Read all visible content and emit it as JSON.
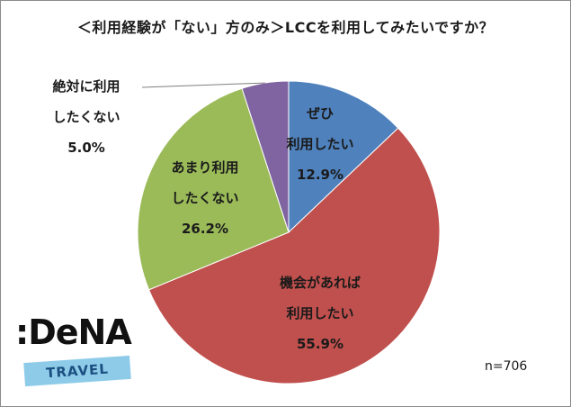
{
  "title": "＜利用経験が「ない」方のみ＞LCCを利用してみたいですか？",
  "sample_size": "n=706",
  "logo": {
    "wordmark": "DeNA",
    "sub": "TRAVEL"
  },
  "chart_data": {
    "type": "pie",
    "title": "＜利用経験が「ない」方のみ＞LCCを利用してみたいですか？",
    "slices": [
      {
        "label_lines": [
          "ぜひ",
          "利用したい"
        ],
        "value": 12.9,
        "value_label": "12.9%",
        "color": "#4f81bd"
      },
      {
        "label_lines": [
          "機会があれば",
          "利用したい"
        ],
        "value": 55.9,
        "value_label": "55.9%",
        "color": "#c0504d"
      },
      {
        "label_lines": [
          "あまり利用",
          "したくない"
        ],
        "value": 26.2,
        "value_label": "26.2%",
        "color": "#9bbb59"
      },
      {
        "label_lines": [
          "絶対に利用",
          "したくない"
        ],
        "value": 5.0,
        "value_label": "5.0%",
        "color": "#8064a2"
      }
    ]
  }
}
